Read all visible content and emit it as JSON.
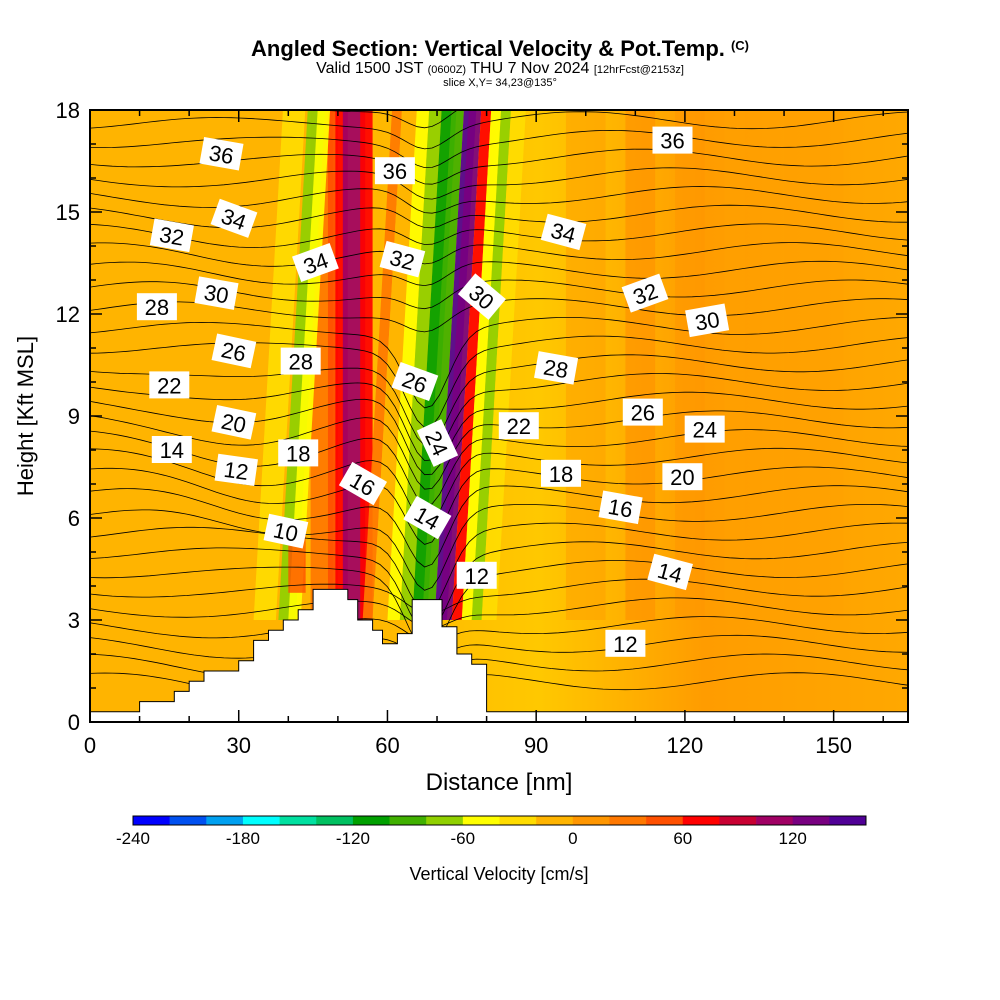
{
  "header": {
    "title": "Angled Section: Vertical Velocity & Pot.Temp.",
    "copyright": "(C)",
    "valid_prefix": "Valid 1500 JST",
    "zulu": "(0600Z)",
    "valid_date": "THU 7 Nov 2024",
    "forecast": "[12hrFcst@2153z]",
    "slice": "slice X,Y= 34,23@135°"
  },
  "chart_data": {
    "type": "heatmap",
    "xlabel": "Distance [nm]",
    "ylabel": "Height [Kft MSL]",
    "xlim": [
      0,
      165
    ],
    "ylim": [
      0,
      18
    ],
    "xticks": [
      0,
      30,
      60,
      90,
      120,
      150
    ],
    "yticks": [
      0,
      3,
      6,
      9,
      12,
      15,
      18
    ],
    "colorbar": {
      "label": "Vertical Velocity [cm/s]",
      "ticks": [
        -240,
        -180,
        -120,
        -60,
        0,
        60,
        120
      ],
      "min": -240,
      "step": 20,
      "colors": [
        "#0000ff",
        "#0050f0",
        "#00a0f0",
        "#00ffff",
        "#00e0a0",
        "#00c060",
        "#00a000",
        "#40b000",
        "#90d000",
        "#ffff00",
        "#ffdc00",
        "#ffb400",
        "#ff9600",
        "#ff7800",
        "#ff5000",
        "#ff0000",
        "#c80032",
        "#a00064",
        "#780080",
        "#500096"
      ]
    },
    "terrain": [
      [
        0,
        0.3
      ],
      [
        10,
        0.3
      ],
      [
        10,
        0.6
      ],
      [
        17,
        0.6
      ],
      [
        17,
        0.9
      ],
      [
        20,
        0.9
      ],
      [
        20,
        1.2
      ],
      [
        23,
        1.2
      ],
      [
        23,
        1.5
      ],
      [
        26,
        1.5
      ],
      [
        26,
        1.5
      ],
      [
        30,
        1.5
      ],
      [
        30,
        1.8
      ],
      [
        33,
        1.8
      ],
      [
        33,
        2.4
      ],
      [
        36,
        2.4
      ],
      [
        36,
        2.7
      ],
      [
        39,
        2.7
      ],
      [
        39,
        3.0
      ],
      [
        42,
        3.0
      ],
      [
        42,
        3.3
      ],
      [
        45,
        3.3
      ],
      [
        45,
        3.9
      ],
      [
        52,
        3.9
      ],
      [
        52,
        3.6
      ],
      [
        54,
        3.6
      ],
      [
        54,
        3.0
      ],
      [
        57,
        3.0
      ],
      [
        57,
        2.7
      ],
      [
        59,
        2.7
      ],
      [
        59,
        2.3
      ],
      [
        62,
        2.3
      ],
      [
        62,
        2.6
      ],
      [
        65,
        2.6
      ],
      [
        65,
        3.6
      ],
      [
        71,
        3.6
      ],
      [
        71,
        2.8
      ],
      [
        74,
        2.8
      ],
      [
        74,
        2.0
      ],
      [
        77,
        2.0
      ],
      [
        77,
        1.7
      ],
      [
        80,
        1.7
      ],
      [
        80,
        0.3
      ],
      [
        165,
        0.3
      ]
    ],
    "contours": [
      {
        "level": "10",
        "y0": 4.0,
        "dip": 0.7,
        "bump": 0.4,
        "label_x": 39.5,
        "label_y": 5.6,
        "rot": 12
      },
      {
        "level": "12",
        "y0": 7.4,
        "dip": 0.6,
        "bump": 2.0,
        "label_x": 29.5,
        "label_y": 7.4,
        "rot": 8
      },
      {
        "level": "12",
        "y0": 2.6,
        "dip": 0.0,
        "bump": 2.5,
        "label_x": 108,
        "label_y": 2.3,
        "rot": 0
      },
      {
        "level": "12",
        "y0": 4.2,
        "dip": 0.0,
        "bump": 0.0,
        "label_x": 78,
        "label_y": 4.3,
        "rot": 0
      },
      {
        "level": "14",
        "y0": 8.0,
        "dip": 0.8,
        "bump": 2.0,
        "label_x": 16.5,
        "label_y": 8.0,
        "rot": 0
      },
      {
        "level": "14",
        "y0": 5.5,
        "dip": 0.3,
        "bump": 1.5,
        "label_x": 68,
        "label_y": 6.0,
        "rot": 30
      },
      {
        "level": "14",
        "y0": 4.4,
        "dip": 0.0,
        "bump": 0.5,
        "label_x": 117,
        "label_y": 4.4,
        "rot": 15
      },
      {
        "level": "16",
        "y0": 7.0,
        "dip": 0.5,
        "bump": 1.5,
        "label_x": 55,
        "label_y": 7.0,
        "rot": 30
      },
      {
        "level": "16",
        "y0": 6.5,
        "dip": 0.0,
        "bump": 0.0,
        "label_x": 107,
        "label_y": 6.3,
        "rot": 10
      },
      {
        "level": "18",
        "y0": 8.0,
        "dip": 0.4,
        "bump": 1.0,
        "label_x": 42,
        "label_y": 7.9,
        "rot": 0
      },
      {
        "level": "18",
        "y0": 7.3,
        "dip": 0.0,
        "bump": 0.0,
        "label_x": 95,
        "label_y": 7.3,
        "rot": 0
      },
      {
        "level": "20",
        "y0": 8.9,
        "dip": 0.3,
        "bump": 1.0,
        "label_x": 29,
        "label_y": 8.8,
        "rot": 12
      },
      {
        "level": "20",
        "y0": 7.2,
        "dip": 0.0,
        "bump": 0.0,
        "label_x": 119.5,
        "label_y": 7.2,
        "rot": 0
      },
      {
        "level": "22",
        "y0": 9.8,
        "dip": 0.2,
        "bump": 0.5,
        "label_x": 16,
        "label_y": 9.9,
        "rot": 0
      },
      {
        "level": "22",
        "y0": 8.8,
        "dip": 0.0,
        "bump": 0.0,
        "label_x": 86.5,
        "label_y": 8.7,
        "rot": 0
      },
      {
        "level": "24",
        "y0": 8.6,
        "dip": 0.0,
        "bump": 0.0,
        "label_x": 70,
        "label_y": 8.2,
        "rot": 65
      },
      {
        "level": "24",
        "y0": 8.5,
        "dip": 0.0,
        "bump": 0.0,
        "label_x": 124,
        "label_y": 8.6,
        "rot": 0
      },
      {
        "level": "26",
        "y0": 10.9,
        "dip": 0.2,
        "bump": 0.5,
        "label_x": 29,
        "label_y": 10.9,
        "rot": 12
      },
      {
        "level": "26",
        "y0": 10.0,
        "dip": 0.0,
        "bump": 0.0,
        "label_x": 65.5,
        "label_y": 10.0,
        "rot": 20
      },
      {
        "level": "26",
        "y0": 9.1,
        "dip": 0.0,
        "bump": 0.0,
        "label_x": 111.5,
        "label_y": 9.1,
        "rot": 0
      },
      {
        "level": "28",
        "y0": 12.3,
        "dip": 0.0,
        "bump": 0.3,
        "label_x": 13.5,
        "label_y": 12.2,
        "rot": 0
      },
      {
        "level": "28",
        "y0": 10.6,
        "dip": 0.0,
        "bump": 0.0,
        "label_x": 42.5,
        "label_y": 10.6,
        "rot": 0
      },
      {
        "level": "28",
        "y0": 10.4,
        "dip": 0.0,
        "bump": 0.0,
        "label_x": 94,
        "label_y": 10.4,
        "rot": 10
      },
      {
        "level": "30",
        "y0": 12.7,
        "dip": 0.0,
        "bump": 0.3,
        "label_x": 25.5,
        "label_y": 12.6,
        "rot": 10
      },
      {
        "level": "30",
        "y0": 12.5,
        "dip": 0.0,
        "bump": 0.0,
        "label_x": 79,
        "label_y": 12.5,
        "rot": 40
      },
      {
        "level": "30",
        "y0": 11.8,
        "dip": 0.0,
        "bump": 0.0,
        "label_x": 124.5,
        "label_y": 11.8,
        "rot": -10
      },
      {
        "level": "32",
        "y0": 14.3,
        "dip": 0.0,
        "bump": 0.3,
        "label_x": 16.5,
        "label_y": 14.3,
        "rot": 10
      },
      {
        "level": "32",
        "y0": 13.6,
        "dip": 0.0,
        "bump": 0.0,
        "label_x": 63,
        "label_y": 13.6,
        "rot": 15
      },
      {
        "level": "32",
        "y0": 12.6,
        "dip": 0.0,
        "bump": 0.0,
        "label_x": 112,
        "label_y": 12.6,
        "rot": -20
      },
      {
        "level": "34",
        "y0": 14.8,
        "dip": 0.0,
        "bump": 0.3,
        "label_x": 29,
        "label_y": 14.8,
        "rot": 20
      },
      {
        "level": "34",
        "y0": 13.5,
        "dip": 0.0,
        "bump": 0.0,
        "label_x": 45.5,
        "label_y": 13.5,
        "rot": -20
      },
      {
        "level": "34",
        "y0": 14.4,
        "dip": 0.0,
        "bump": 0.0,
        "label_x": 95.5,
        "label_y": 14.4,
        "rot": 15
      },
      {
        "level": "36",
        "y0": 16.7,
        "dip": 0.0,
        "bump": 0.0,
        "label_x": 26.5,
        "label_y": 16.7,
        "rot": 10
      },
      {
        "level": "36",
        "y0": 16.2,
        "dip": 0.0,
        "bump": 0.0,
        "label_x": 61.5,
        "label_y": 16.2,
        "rot": 0
      },
      {
        "level": "36",
        "y0": 17.1,
        "dip": 0.0,
        "bump": 0.0,
        "label_x": 117.5,
        "label_y": 17.1,
        "rot": 0
      }
    ]
  }
}
